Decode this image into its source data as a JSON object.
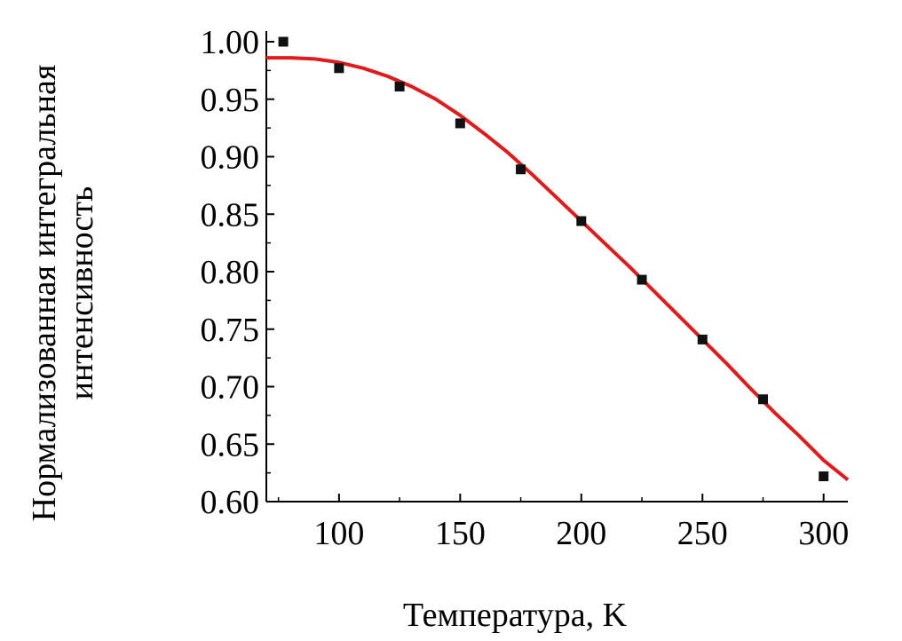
{
  "chart_data": {
    "type": "scatter",
    "xlabel": "Температура, K",
    "ylabel_lines": [
      "Нормализованная интегральная",
      "интенсивность"
    ],
    "xlim": [
      70,
      310
    ],
    "ylim": [
      0.6,
      1.0
    ],
    "x_ticks": [
      100,
      150,
      200,
      250,
      300
    ],
    "y_ticks": [
      0.6,
      0.65,
      0.7,
      0.75,
      0.8,
      0.85,
      0.9,
      0.95,
      1.0
    ],
    "y_tick_labels": [
      "0.60",
      "0.65",
      "0.70",
      "0.75",
      "0.80",
      "0.85",
      "0.90",
      "0.95",
      "1.00"
    ],
    "series": [
      {
        "kind": "points",
        "color": "#111111",
        "marker": "square",
        "x": [
          77,
          100,
          125,
          150,
          175,
          200,
          225,
          250,
          275,
          300
        ],
        "y": [
          1.0,
          0.977,
          0.961,
          0.929,
          0.889,
          0.844,
          0.793,
          0.741,
          0.689,
          0.622
        ]
      },
      {
        "kind": "fit-line",
        "color": "#e01b1b",
        "x": [
          70,
          80,
          90,
          100,
          110,
          120,
          130,
          140,
          150,
          160,
          170,
          180,
          190,
          200,
          210,
          220,
          230,
          240,
          250,
          260,
          270,
          280,
          290,
          300,
          310
        ],
        "y": [
          0.986,
          0.986,
          0.985,
          0.982,
          0.977,
          0.97,
          0.961,
          0.95,
          0.936,
          0.92,
          0.903,
          0.884,
          0.864,
          0.844,
          0.824,
          0.804,
          0.783,
          0.762,
          0.741,
          0.72,
          0.698,
          0.677,
          0.657,
          0.636,
          0.619
        ]
      }
    ],
    "grid": false,
    "legend": "none"
  }
}
